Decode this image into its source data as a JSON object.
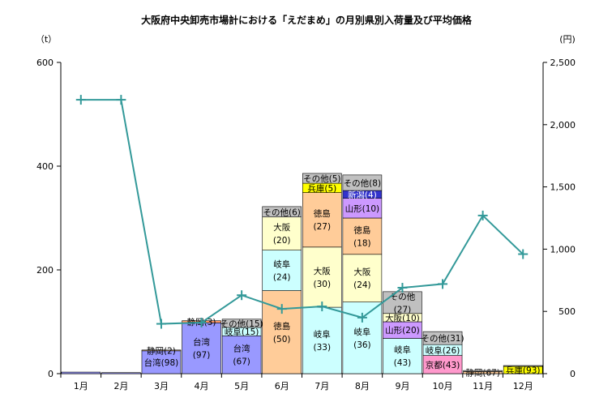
{
  "chart_data": {
    "type": "bar",
    "title": "大阪府中央卸売市場計における「えだまめ」の月別県別入荷量及び平均価格",
    "y_left_unit": "（t）",
    "y_right_unit": "(円)",
    "categories": [
      "1月",
      "2月",
      "3月",
      "4月",
      "5月",
      "6月",
      "7月",
      "8月",
      "9月",
      "10月",
      "11月",
      "12月"
    ],
    "ylim_left": [
      0,
      600
    ],
    "yticks_left": [
      "0",
      "200",
      "400",
      "600"
    ],
    "ylim_right": [
      0,
      2500
    ],
    "yticks_right": [
      "0",
      "500",
      "1,000",
      "1,500",
      "2,000",
      "2,500"
    ],
    "stacks": [
      [
        {
          "label": "",
          "share": 100,
          "value": 3,
          "color": "#9999ff"
        }
      ],
      [
        {
          "label": "",
          "share": 100,
          "value": 2,
          "color": "#9999ff"
        }
      ],
      [
        {
          "label": "台湾(98)",
          "share": 98,
          "value": 44,
          "color": "#9999ff"
        },
        {
          "label": "静岡(2)",
          "share": 2,
          "value": 1,
          "color": "#ffcc99"
        }
      ],
      [
        {
          "label": "台湾\n(97)",
          "share": 97,
          "value": 98,
          "color": "#9999ff"
        },
        {
          "label": "静岡(3)",
          "share": 3,
          "value": 4,
          "color": "#ff9966"
        }
      ],
      [
        {
          "label": "台湾\n(67)",
          "share": 67,
          "value": 73,
          "color": "#9999ff"
        },
        {
          "label": "岐阜(15)",
          "share": 15,
          "value": 16,
          "color": "#ccffff"
        },
        {
          "label": "その他(15)",
          "share": 15,
          "value": 16,
          "color": "#c0c0c0"
        }
      ],
      [
        {
          "label": "徳島\n(50)",
          "share": 50,
          "value": 160,
          "color": "#ffcc99"
        },
        {
          "label": "岐阜\n(24)",
          "share": 24,
          "value": 78,
          "color": "#ccffff"
        },
        {
          "label": "大阪\n(20)",
          "share": 20,
          "value": 64,
          "color": "#ffffcc"
        },
        {
          "label": "その他(6)",
          "share": 6,
          "value": 20,
          "color": "#c0c0c0"
        }
      ],
      [
        {
          "label": "岐阜\n(33)",
          "share": 33,
          "value": 128,
          "color": "#ccffff"
        },
        {
          "label": "大阪\n(30)",
          "share": 30,
          "value": 116,
          "color": "#ffffcc"
        },
        {
          "label": "徳島\n(27)",
          "share": 27,
          "value": 105,
          "color": "#ffcc99"
        },
        {
          "label": "兵庫(5)",
          "share": 5,
          "value": 18,
          "color": "#ffff00"
        },
        {
          "label": "その他(5)",
          "share": 5,
          "value": 19,
          "color": "#c0c0c0"
        }
      ],
      [
        {
          "label": "岐阜\n(36)",
          "share": 36,
          "value": 138,
          "color": "#ccffff"
        },
        {
          "label": "大阪\n(24)",
          "share": 24,
          "value": 92,
          "color": "#ffffcc"
        },
        {
          "label": "徳島\n(18)",
          "share": 18,
          "value": 70,
          "color": "#ffcc99"
        },
        {
          "label": "山形(10)",
          "share": 10,
          "value": 38,
          "color": "#cc99ff"
        },
        {
          "label": "新潟(4)",
          "share": 4,
          "value": 15,
          "color": "#3333cc"
        },
        {
          "label": "その他(8)",
          "share": 8,
          "value": 30,
          "color": "#c0c0c0"
        }
      ],
      [
        {
          "label": "岐阜\n(43)",
          "share": 43,
          "value": 68,
          "color": "#ccffff"
        },
        {
          "label": "山形(20)",
          "share": 20,
          "value": 32,
          "color": "#cc99ff"
        },
        {
          "label": "大阪(10)",
          "share": 10,
          "value": 16,
          "color": "#ffffcc"
        },
        {
          "label": "その他\n(27)",
          "share": 27,
          "value": 42,
          "color": "#c0c0c0"
        }
      ],
      [
        {
          "label": "京都(43)",
          "share": 43,
          "value": 35,
          "color": "#ff99cc"
        },
        {
          "label": "岐阜(26)",
          "share": 26,
          "value": 21,
          "color": "#ccffff"
        },
        {
          "label": "その他(31)",
          "share": 31,
          "value": 25,
          "color": "#c0c0c0"
        }
      ],
      [
        {
          "label": "静岡(67)",
          "share": 67,
          "value": 4,
          "color": "#ffcc99"
        },
        {
          "label": "",
          "share": 33,
          "value": 2,
          "color": "#c0c0c0"
        }
      ],
      [
        {
          "label": "兵庫(93)",
          "share": 93,
          "value": 14,
          "color": "#ffff00"
        },
        {
          "label": "",
          "share": 7,
          "value": 1,
          "color": "#c0c0c0"
        }
      ]
    ],
    "price_series": {
      "values": [
        2200,
        2200,
        400,
        410,
        630,
        520,
        540,
        450,
        690,
        720,
        1270,
        960
      ],
      "color": "#339999"
    },
    "grid": false
  }
}
